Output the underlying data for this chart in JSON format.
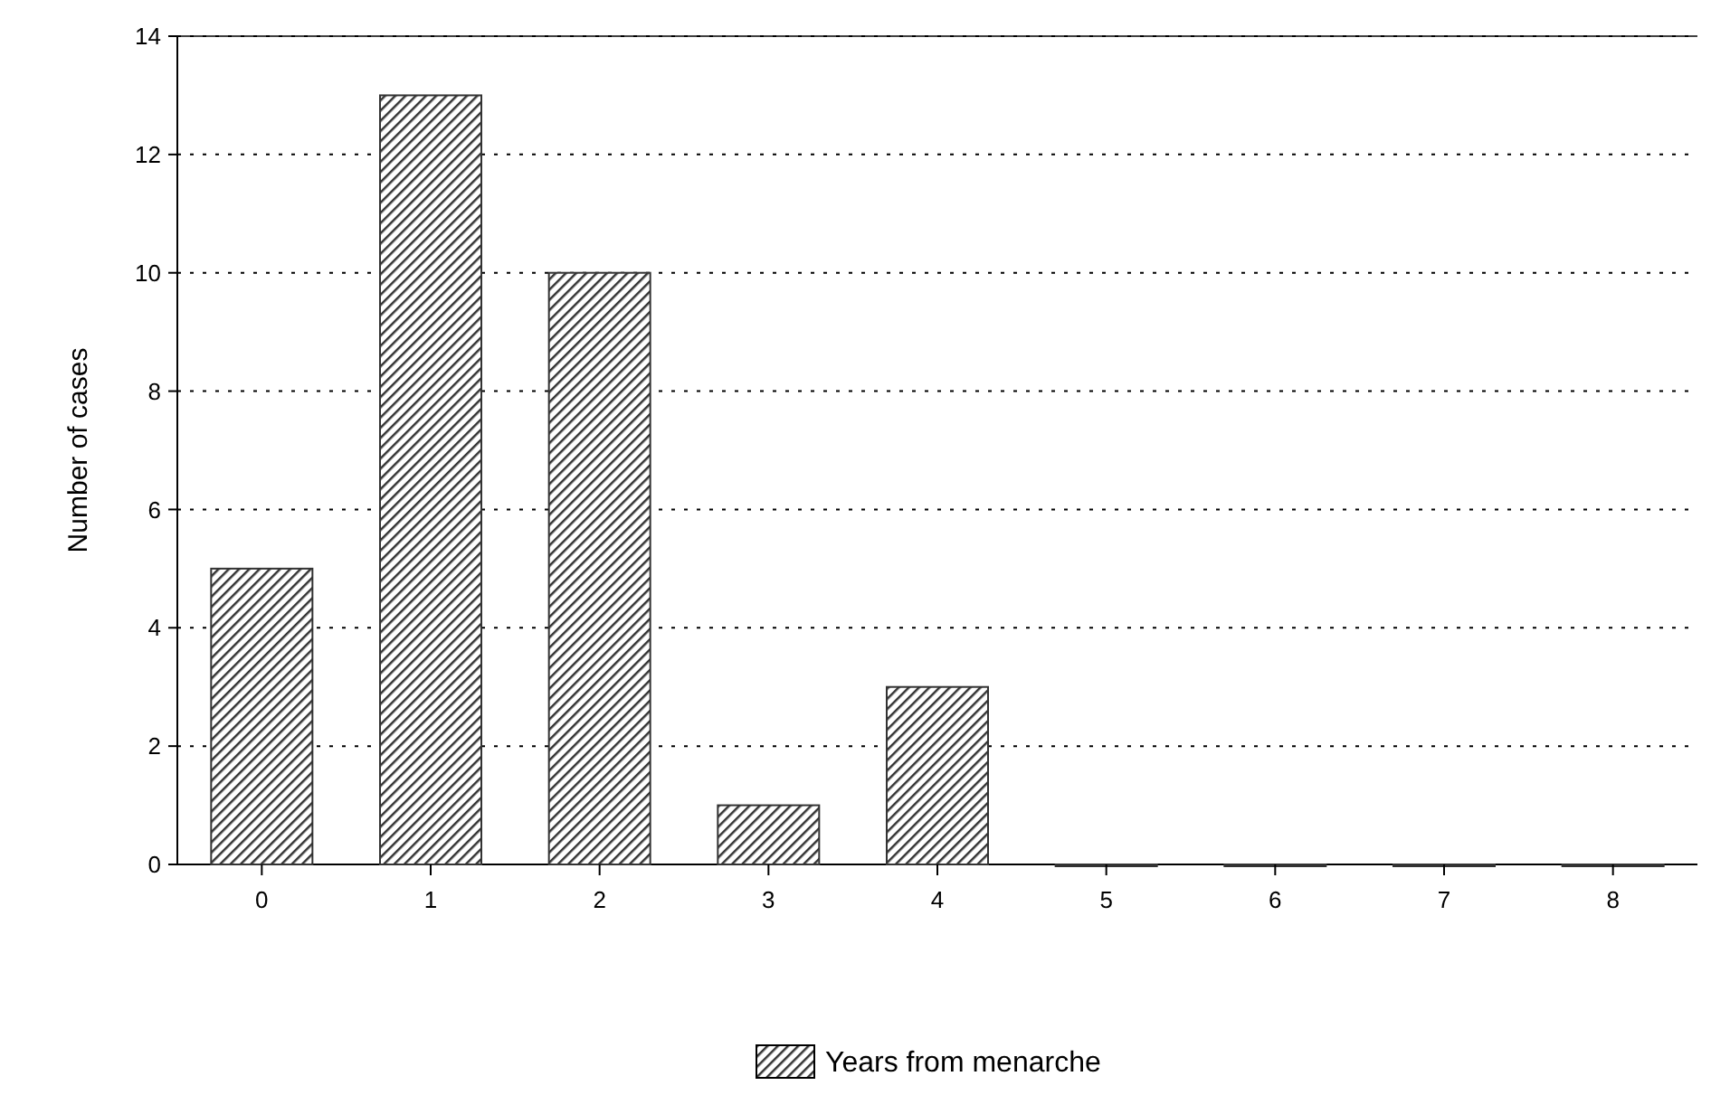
{
  "chart_data": {
    "type": "bar",
    "ylabel": "Number of cases",
    "categories": [
      "0",
      "1",
      "2",
      "3",
      "4",
      "5",
      "6",
      "7",
      "8"
    ],
    "series": [
      {
        "name": "Years from menarche",
        "color": "#333333",
        "values": [
          5,
          13,
          10,
          1,
          3,
          0,
          0,
          0,
          0
        ]
      }
    ],
    "ylim": [
      0,
      14
    ],
    "yticks": [
      0,
      2,
      4,
      6,
      8,
      10,
      12,
      14
    ],
    "grid": "y",
    "legend": "bottom"
  }
}
